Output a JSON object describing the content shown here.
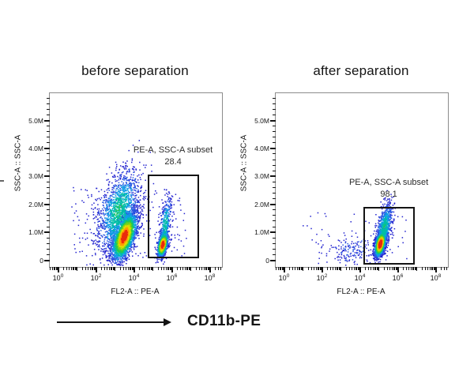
{
  "figure": {
    "background_color": "#ffffff",
    "arrow_label": "CD11b-PE"
  },
  "chart_data": {
    "type": "scatter",
    "subtype": "flow_cytometry_pseudocolor_density",
    "panels": 2,
    "palette": [
      "#2323cf",
      "#2a5be4",
      "#109fe6",
      "#00bfa6",
      "#27c94f",
      "#7fd414",
      "#e0dd00",
      "#ff9b00",
      "#ea2a0c"
    ],
    "x_axis": {
      "label": "FL2-A :: PE-A",
      "scale": "log10",
      "base": "10",
      "major_tick_exponents": [
        "0",
        "2",
        "4",
        "6",
        "8"
      ],
      "major_tick_decades": [
        0,
        2,
        4,
        6,
        8
      ],
      "medium_tick_decades": [
        1,
        3,
        5,
        7
      ],
      "range_log10": [
        -0.44,
        8.65
      ]
    },
    "y_axis": {
      "label": "SSC-A :: SSC-A",
      "scale": "linear",
      "ticks": [
        {
          "value_M": 0,
          "label": "0"
        },
        {
          "value_M": 1,
          "label": "1.0M"
        },
        {
          "value_M": 2,
          "label": "2.0M"
        },
        {
          "value_M": 3,
          "label": "3.0M"
        },
        {
          "value_M": 4,
          "label": "4.0M"
        },
        {
          "value_M": 5,
          "label": "5.0M"
        }
      ],
      "minor_step_M": 0.2,
      "range_M": [
        -0.26,
        5.97
      ]
    },
    "plots": [
      {
        "title": "before separation",
        "gate": {
          "label": "PE-A, SSC-A subset",
          "percent": "28.4",
          "x_log10": [
            4.71,
            7.42
          ],
          "y_M": [
            0.07,
            3.06
          ]
        },
        "populations": [
          {
            "name": "negative-main-spread",
            "kind": "gauss",
            "n": 1500,
            "cx": 3.2,
            "cy": 1.75,
            "sx": 0.55,
            "sy": 0.75,
            "rho": 0.45,
            "w": 0.42
          },
          {
            "name": "negative-main-core",
            "kind": "gauss",
            "n": 2600,
            "cx": 3.5,
            "cy": 0.85,
            "sx": 0.32,
            "sy": 0.42,
            "rho": 0.55,
            "w": 0.95
          },
          {
            "name": "positive-subset-tail",
            "kind": "gauss",
            "n": 430,
            "cx": 5.65,
            "cy": 1.25,
            "sx": 0.16,
            "sy": 0.55,
            "rho": 0.55,
            "w": 0.38
          },
          {
            "name": "positive-subset-core",
            "kind": "gauss",
            "n": 950,
            "cx": 5.52,
            "cy": 0.55,
            "sx": 0.13,
            "sy": 0.21,
            "rho": 0.45,
            "w": 1.0
          },
          {
            "name": "background-debris",
            "kind": "uniform",
            "n": 240,
            "x0": 0.7,
            "x1": 6.8,
            "y0": 0.05,
            "y1": 2.6,
            "w": 0.1
          }
        ]
      },
      {
        "title": "after separation",
        "gate": {
          "label": "PE-A, SSC-A subset",
          "percent": "98.1",
          "x_log10": [
            4.17,
            6.88
          ],
          "y_M": [
            -0.15,
            1.91
          ]
        },
        "populations": [
          {
            "name": "positive-tail",
            "kind": "gauss",
            "n": 800,
            "cx": 5.28,
            "cy": 1.15,
            "sx": 0.22,
            "sy": 0.45,
            "rho": 0.55,
            "w": 0.4
          },
          {
            "name": "positive-core",
            "kind": "gauss",
            "n": 2000,
            "cx": 5.08,
            "cy": 0.58,
            "sx": 0.14,
            "sy": 0.22,
            "rho": 0.45,
            "w": 1.0
          },
          {
            "name": "debris-left-scatter",
            "kind": "gauss",
            "n": 175,
            "cx": 3.55,
            "cy": 0.35,
            "sx": 0.72,
            "sy": 0.28,
            "rho": 0.15,
            "w": 0.13
          },
          {
            "name": "background-debris",
            "kind": "uniform",
            "n": 50,
            "x0": 1.0,
            "x1": 6.6,
            "y0": 0.02,
            "y1": 1.7,
            "w": 0.08
          }
        ]
      }
    ]
  }
}
